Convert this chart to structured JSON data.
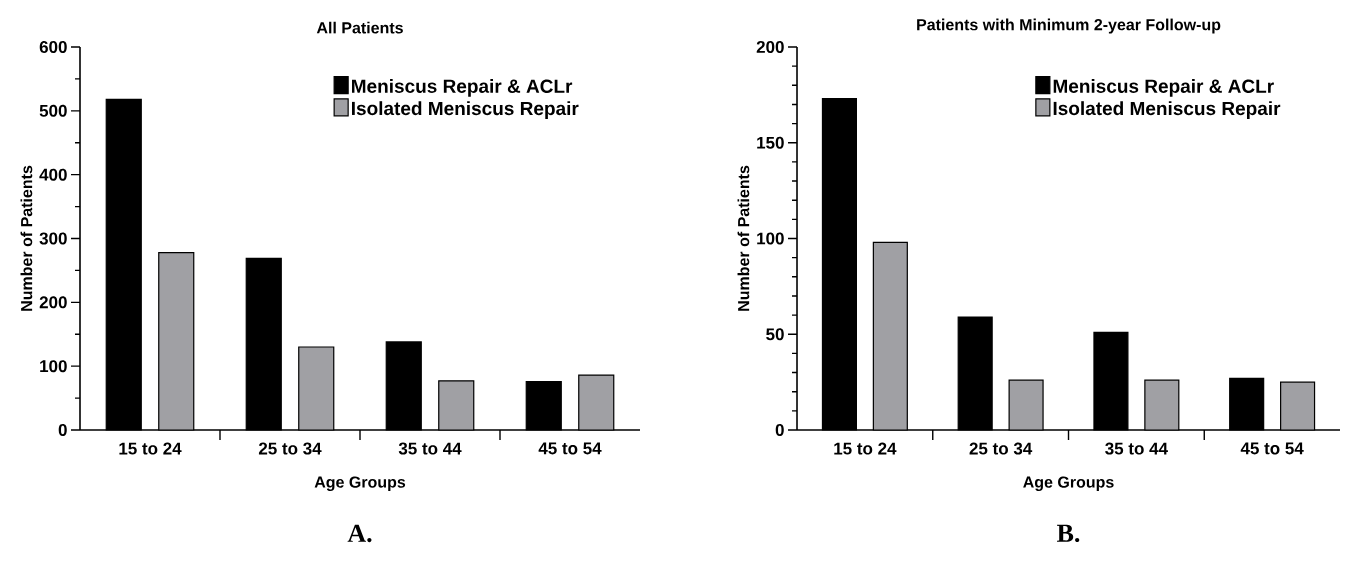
{
  "chart_data": [
    {
      "type": "bar",
      "title": "All Patients",
      "xlabel": "Age Groups",
      "ylabel": "Number of Patients",
      "categories": [
        "15 to 24",
        "25 to 34",
        "35 to 44",
        "45 to 54"
      ],
      "series": [
        {
          "name": "Meniscus Repair & ACLr",
          "color": "#000000",
          "values": [
            518,
            269,
            138,
            76
          ]
        },
        {
          "name": "Isolated Meniscus Repair",
          "color": "#a0a0a4",
          "values": [
            278,
            130,
            77,
            86
          ]
        }
      ],
      "ylim": [
        0,
        600
      ],
      "yticks": [
        0,
        {
          "value": 50,
          "label": null
        },
        100,
        {
          "value": 150,
          "label": null
        },
        200,
        {
          "value": 250,
          "label": null
        },
        300,
        {
          "value": 350,
          "label": null
        },
        400,
        {
          "value": 450,
          "label": null
        },
        500,
        {
          "value": 550,
          "label": null
        },
        600
      ],
      "legend": "top right",
      "annotations": [
        "A."
      ]
    },
    {
      "type": "bar",
      "title": "Patients with Minimum 2-year Follow-up",
      "xlabel": "Age Groups",
      "ylabel": "Number of Patients",
      "categories": [
        "15 to 24",
        "25 to 34",
        "35 to 44",
        "45 to 54"
      ],
      "series": [
        {
          "name": "Meniscus Repair & ACLr",
          "color": "#000000",
          "values": [
            173,
            59,
            51,
            27
          ]
        },
        {
          "name": "Isolated Meniscus Repair",
          "color": "#a0a0a4",
          "values": [
            98,
            26,
            26,
            25
          ]
        }
      ],
      "ylim": [
        0,
        200
      ],
      "yticks": [
        0,
        {
          "value": 10,
          "label": null
        },
        {
          "value": 20,
          "label": null
        },
        {
          "value": 30,
          "label": null
        },
        {
          "value": 40,
          "label": null
        },
        50,
        {
          "value": 60,
          "label": null
        },
        {
          "value": 70,
          "label": null
        },
        {
          "value": 80,
          "label": null
        },
        {
          "value": 90,
          "label": null
        },
        100,
        {
          "value": 110,
          "label": null
        },
        {
          "value": 120,
          "label": null
        },
        {
          "value": 130,
          "label": null
        },
        {
          "value": 140,
          "label": null
        },
        150,
        {
          "value": 160,
          "label": null
        },
        {
          "value": 170,
          "label": null
        },
        {
          "value": 180,
          "label": null
        },
        {
          "value": 190,
          "label": null
        },
        200
      ],
      "legend": "top right",
      "annotations": [
        "B."
      ]
    }
  ]
}
